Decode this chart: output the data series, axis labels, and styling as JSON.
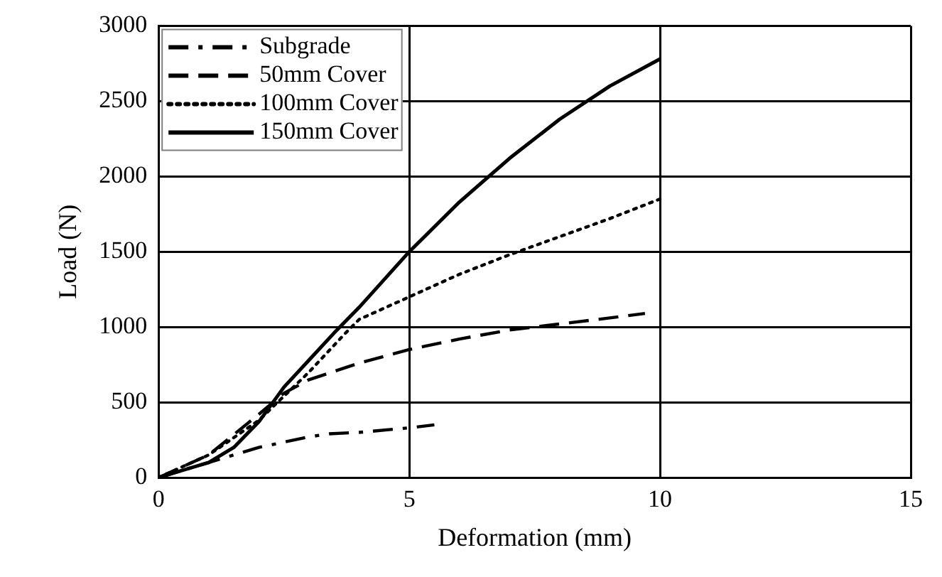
{
  "chart_data": {
    "type": "line",
    "xlabel": "Deformation (mm)",
    "ylabel": "Load (N)",
    "xlim": [
      0,
      15
    ],
    "xticks": [
      0,
      5,
      10,
      15
    ],
    "ylim": [
      0,
      3000
    ],
    "yticks": [
      0,
      500,
      1000,
      1500,
      2000,
      2500,
      3000
    ],
    "grid": true,
    "legend": "top left",
    "marker": "none",
    "series": [
      {
        "name": "Subgrade",
        "color": "#000000",
        "line_style": "dashdot",
        "x": [
          0,
          1,
          1.5,
          2,
          3,
          3.4,
          4,
          5,
          5.5
        ],
        "values": [
          0,
          100,
          150,
          200,
          270,
          290,
          300,
          330,
          350
        ]
      },
      {
        "name": "50mm Cover",
        "color": "#000000",
        "line_style": "dashed",
        "x": [
          0,
          1,
          2,
          2.5,
          3,
          4,
          5,
          6,
          7,
          8,
          9,
          9.7
        ],
        "values": [
          0,
          150,
          420,
          560,
          650,
          760,
          850,
          920,
          980,
          1020,
          1060,
          1090
        ]
      },
      {
        "name": "100mm Cover",
        "color": "#000000",
        "line_style": "dotted",
        "x": [
          0,
          1,
          2,
          3,
          3.7,
          4,
          5,
          6,
          7,
          8,
          9,
          10
        ],
        "values": [
          0,
          150,
          380,
          700,
          950,
          1050,
          1200,
          1350,
          1480,
          1600,
          1720,
          1850
        ]
      },
      {
        "name": "150mm Cover",
        "color": "#000000",
        "line_style": "solid",
        "x": [
          0,
          1,
          1.5,
          2,
          2.5,
          3,
          3.5,
          4,
          5,
          6,
          7,
          8,
          9,
          10
        ],
        "values": [
          0,
          100,
          200,
          370,
          600,
          780,
          960,
          1130,
          1500,
          1830,
          2120,
          2380,
          2600,
          2780
        ]
      }
    ]
  }
}
